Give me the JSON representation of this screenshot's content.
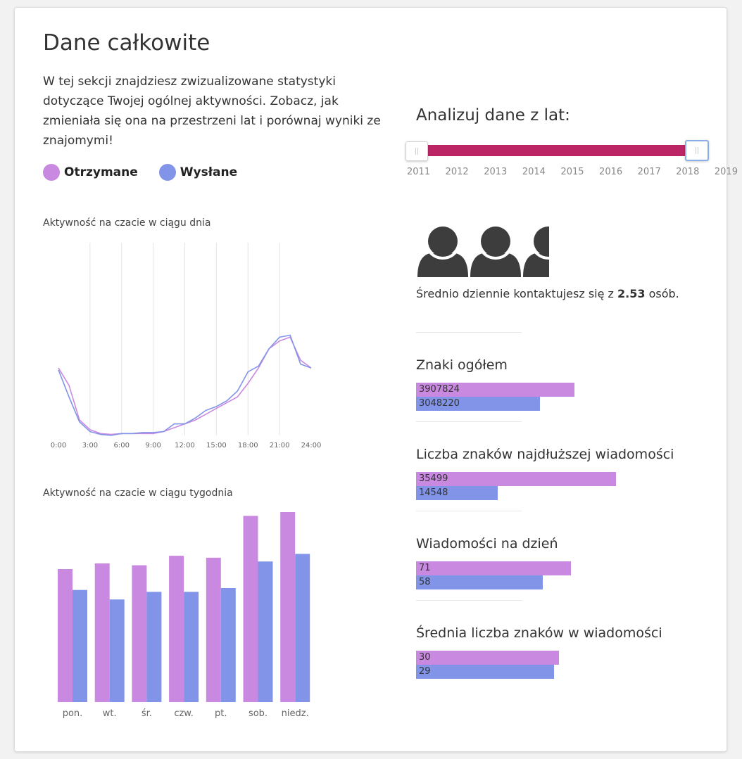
{
  "colors": {
    "received": "#c989e0",
    "sent": "#8294e8",
    "slider": "#bb2565"
  },
  "header": {
    "title": "Dane całkowite",
    "intro": "W tej sekcji znajdziesz zwizualizowane statystyki dotyczące Twojej ogólnej aktywności. Zobacz, jak zmieniała się ona na przestrzeni lat i porównaj wyniki ze znajomymi!"
  },
  "legend": {
    "received": "Otrzymane",
    "sent": "Wysłane"
  },
  "range": {
    "title": "Analizuj dane z lat:",
    "years": [
      "2011",
      "2012",
      "2013",
      "2014",
      "2015",
      "2016",
      "2017",
      "2018",
      "2019"
    ],
    "selected_from": "2011",
    "selected_to": "2019"
  },
  "contacts": {
    "prefix": "Średnio dziennie kontaktujesz się z ",
    "value": "2.53",
    "suffix": " osób."
  },
  "chart_data": [
    {
      "type": "line",
      "title": "Aktywność na czacie w ciągu dnia",
      "x": [
        0,
        1,
        2,
        3,
        4,
        5,
        6,
        7,
        8,
        9,
        10,
        11,
        12,
        13,
        14,
        15,
        16,
        17,
        18,
        19,
        20,
        21,
        22,
        23,
        24
      ],
      "x_tick_labels": [
        "0:00",
        "3:00",
        "6:00",
        "9:00",
        "12:00",
        "15:00",
        "18:00",
        "21:00",
        "24:00"
      ],
      "x_ticks": [
        0,
        3,
        6,
        9,
        12,
        15,
        18,
        21,
        24
      ],
      "ylim": [
        0,
        100
      ],
      "grid": "vertical",
      "series": [
        {
          "name": "Otrzymane",
          "values": [
            35,
            26,
            8,
            3,
            1,
            0.5,
            1,
            1,
            1,
            1,
            2,
            4,
            6,
            8,
            11,
            14,
            17,
            20,
            27,
            35,
            45,
            49,
            51,
            39,
            35
          ]
        },
        {
          "name": "Wysłane",
          "values": [
            34,
            20,
            7,
            2,
            0.5,
            0,
            1,
            1,
            1.5,
            1.5,
            2,
            6,
            6,
            9,
            13,
            15,
            18,
            23,
            33,
            36,
            45,
            51,
            52,
            37,
            35
          ]
        }
      ]
    },
    {
      "type": "bar",
      "title": "Aktywność na czacie w ciągu tygodnia",
      "categories": [
        "pon.",
        "wt.",
        "śr.",
        "czw.",
        "pt.",
        "sob.",
        "niedz."
      ],
      "ylim": [
        0,
        100
      ],
      "series": [
        {
          "name": "Otrzymane",
          "values": [
            70,
            73,
            72,
            77,
            76,
            98,
            100
          ]
        },
        {
          "name": "Wysłane",
          "values": [
            59,
            54,
            58,
            58,
            60,
            74,
            78
          ]
        }
      ]
    },
    {
      "type": "bar",
      "orientation": "horizontal",
      "title": "Znaki ogółem",
      "categories": [
        "Otrzymane",
        "Wysłane"
      ],
      "values": [
        3907824,
        3048220
      ],
      "labels": [
        "3907824",
        "3048220"
      ]
    },
    {
      "type": "bar",
      "orientation": "horizontal",
      "title": "Liczba znaków najdłuższej wiadomości",
      "categories": [
        "Otrzymane",
        "Wysłane"
      ],
      "values": [
        35499,
        14548
      ],
      "labels": [
        "35499",
        "14548"
      ]
    },
    {
      "type": "bar",
      "orientation": "horizontal",
      "title": "Wiadomości na dzień",
      "categories": [
        "Otrzymane",
        "Wysłane"
      ],
      "values": [
        71,
        58
      ],
      "labels": [
        "71",
        "58"
      ]
    },
    {
      "type": "bar",
      "orientation": "horizontal",
      "title": "Średnia liczba znaków w wiadomości",
      "categories": [
        "Otrzymane",
        "Wysłane"
      ],
      "values": [
        30,
        29
      ],
      "labels": [
        "30",
        "29"
      ]
    }
  ]
}
